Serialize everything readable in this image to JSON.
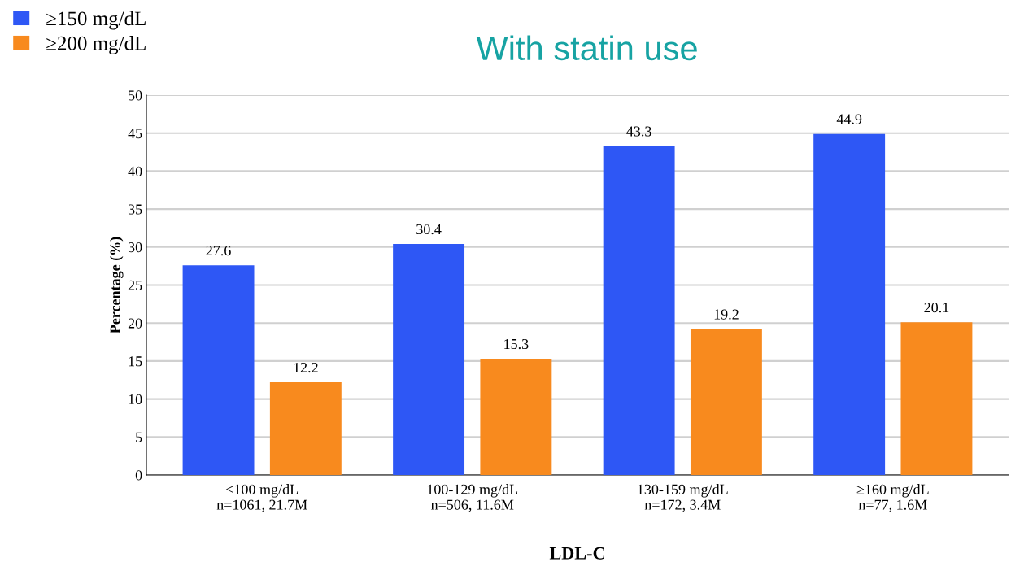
{
  "chart_data": {
    "type": "bar",
    "title": "With statin use",
    "xlabel": "LDL-C",
    "ylabel": "Percentage (%)",
    "categories": [
      "<100 mg/dL\nn=1061, 21.7M",
      "100-129 mg/dL\nn=506, 11.6M",
      "130-159 mg/dL\nn=172, 3.4M",
      "≥160 mg/dL\nn=77, 1.6M"
    ],
    "series": [
      {
        "name": "≥150 mg/dL",
        "color": "#2e57f5",
        "values": [
          27.6,
          30.4,
          43.3,
          44.9
        ]
      },
      {
        "name": "≥200 mg/dL",
        "color": "#f88a1e",
        "values": [
          12.2,
          15.3,
          19.2,
          20.1
        ]
      }
    ],
    "ylim": [
      0,
      50
    ],
    "yticks": [
      0,
      5,
      10,
      15,
      20,
      25,
      30,
      35,
      40,
      45,
      50
    ],
    "grid": "y",
    "data_labels": true,
    "legend": "top left"
  }
}
